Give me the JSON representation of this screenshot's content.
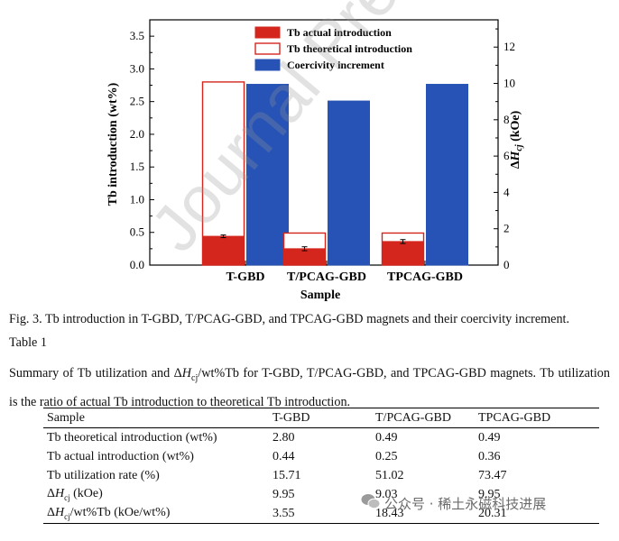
{
  "chart_data": {
    "type": "bar",
    "categories": [
      "T-GBD",
      "T/PCAG-GBD",
      "TPCAG-GBD"
    ],
    "xlabel": "Sample",
    "ylabel_left": "Tb introduction (wt%)",
    "ylabel_right": "ΔHcj (kOe)",
    "ylabel_right_parts": {
      "delta": "Δ",
      "H": "H",
      "sub": "cj",
      "unit": " (kOe)"
    },
    "ylim_left": [
      0,
      3.75
    ],
    "yticks_left": [
      0.0,
      0.5,
      1.0,
      1.5,
      2.0,
      2.5,
      3.0,
      3.5
    ],
    "ylim_right": [
      0,
      13.5
    ],
    "yticks_right": [
      0,
      2,
      4,
      6,
      8,
      10,
      12
    ],
    "series": [
      {
        "name": "Tb actual introduction",
        "axis": "left",
        "values": [
          0.44,
          0.25,
          0.36
        ],
        "errors": [
          0.02,
          0.03,
          0.03
        ],
        "color": "#d5261e",
        "style": "filled"
      },
      {
        "name": "Tb theoretical introduction",
        "axis": "left",
        "values": [
          2.8,
          0.49,
          0.49
        ],
        "color": "#d5261e",
        "style": "outline"
      },
      {
        "name": "Coercivity increment",
        "axis": "right",
        "values": [
          9.95,
          9.03,
          9.95
        ],
        "color": "#2653b5",
        "style": "filled"
      }
    ],
    "legend_position": "top-center"
  },
  "caption": "Fig. 3. Tb introduction in T-GBD, T/PCAG-GBD, and TPCAG-GBD magnets and their coercivity increment.",
  "table_label": "Table 1",
  "table_summary_pre": "Summary of Tb utilization and ",
  "table_summary_delta": "Δ",
  "table_summary_H": "H",
  "table_summary_sub": "cj",
  "table_summary_post": "/wt%Tb for T-GBD, T/PCAG-GBD, and TPCAG-GBD magnets. Tb utilization is the ratio of actual Tb introduction to theoretical Tb introduction.",
  "table": {
    "headers": [
      "Sample",
      "T-GBD",
      "T/PCAG-GBD",
      "TPCAG-GBD"
    ],
    "rows": [
      {
        "label": "Tb theoretical introduction (wt%)",
        "values": [
          "2.80",
          "0.49",
          "0.49"
        ]
      },
      {
        "label": "Tb actual introduction (wt%)",
        "values": [
          "0.44",
          "0.25",
          "0.36"
        ]
      },
      {
        "label": "Tb utilization rate (%)",
        "values": [
          "15.71",
          "51.02",
          "73.47"
        ]
      },
      {
        "label_delta": "Δ",
        "label_H": "H",
        "label_sub": "cj",
        "label_post": " (kOe)",
        "values": [
          "9.95",
          "9.03",
          "9.95"
        ]
      },
      {
        "label_delta": "Δ",
        "label_H": "H",
        "label_sub": "cj",
        "label_post": "/wt%Tb (kOe/wt%)",
        "values": [
          "3.55",
          "18.43",
          "20.31"
        ]
      }
    ]
  },
  "watermark": "公众号 · 稀土永磁科技进展",
  "diagonal_watermark": "Journal Pre-proof"
}
